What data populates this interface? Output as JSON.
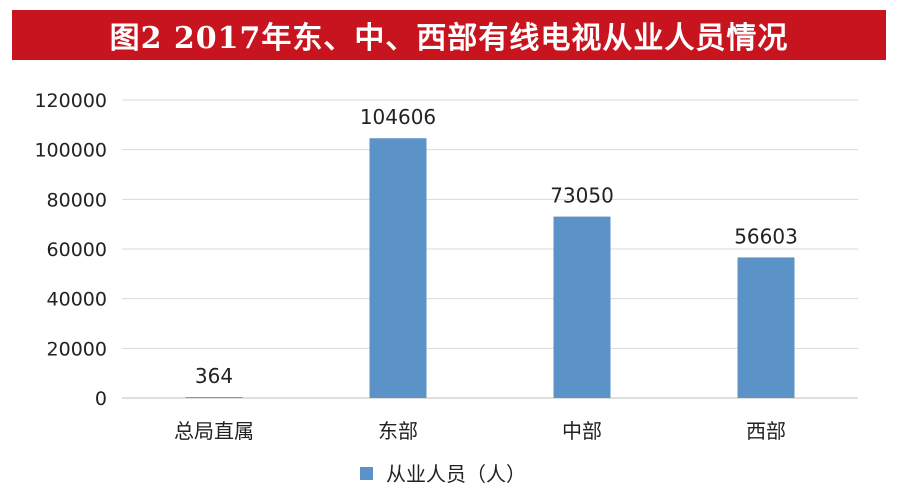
{
  "title": "图2  2017年东、中、西部有线电视从业人员情况",
  "colors": {
    "title_bg": "#c8141e",
    "bar": "#5b93c9",
    "grid": "#d9d9d9"
  },
  "chart_data": {
    "type": "bar",
    "categories": [
      "总局直属",
      "东部",
      "中部",
      "西部"
    ],
    "series": [
      {
        "name": "从业人员（人）",
        "values": [
          364,
          104606,
          73050,
          56603
        ]
      }
    ],
    "data_labels": [
      "364",
      "104606",
      "73050",
      "56603"
    ],
    "ylim": [
      0,
      120000
    ],
    "yticks": [
      0,
      20000,
      40000,
      60000,
      80000,
      100000,
      120000
    ],
    "ytick_labels": [
      "0",
      "20000",
      "40000",
      "60000",
      "80000",
      "100000",
      "120000"
    ],
    "grid": true,
    "legend_position": "bottom"
  }
}
